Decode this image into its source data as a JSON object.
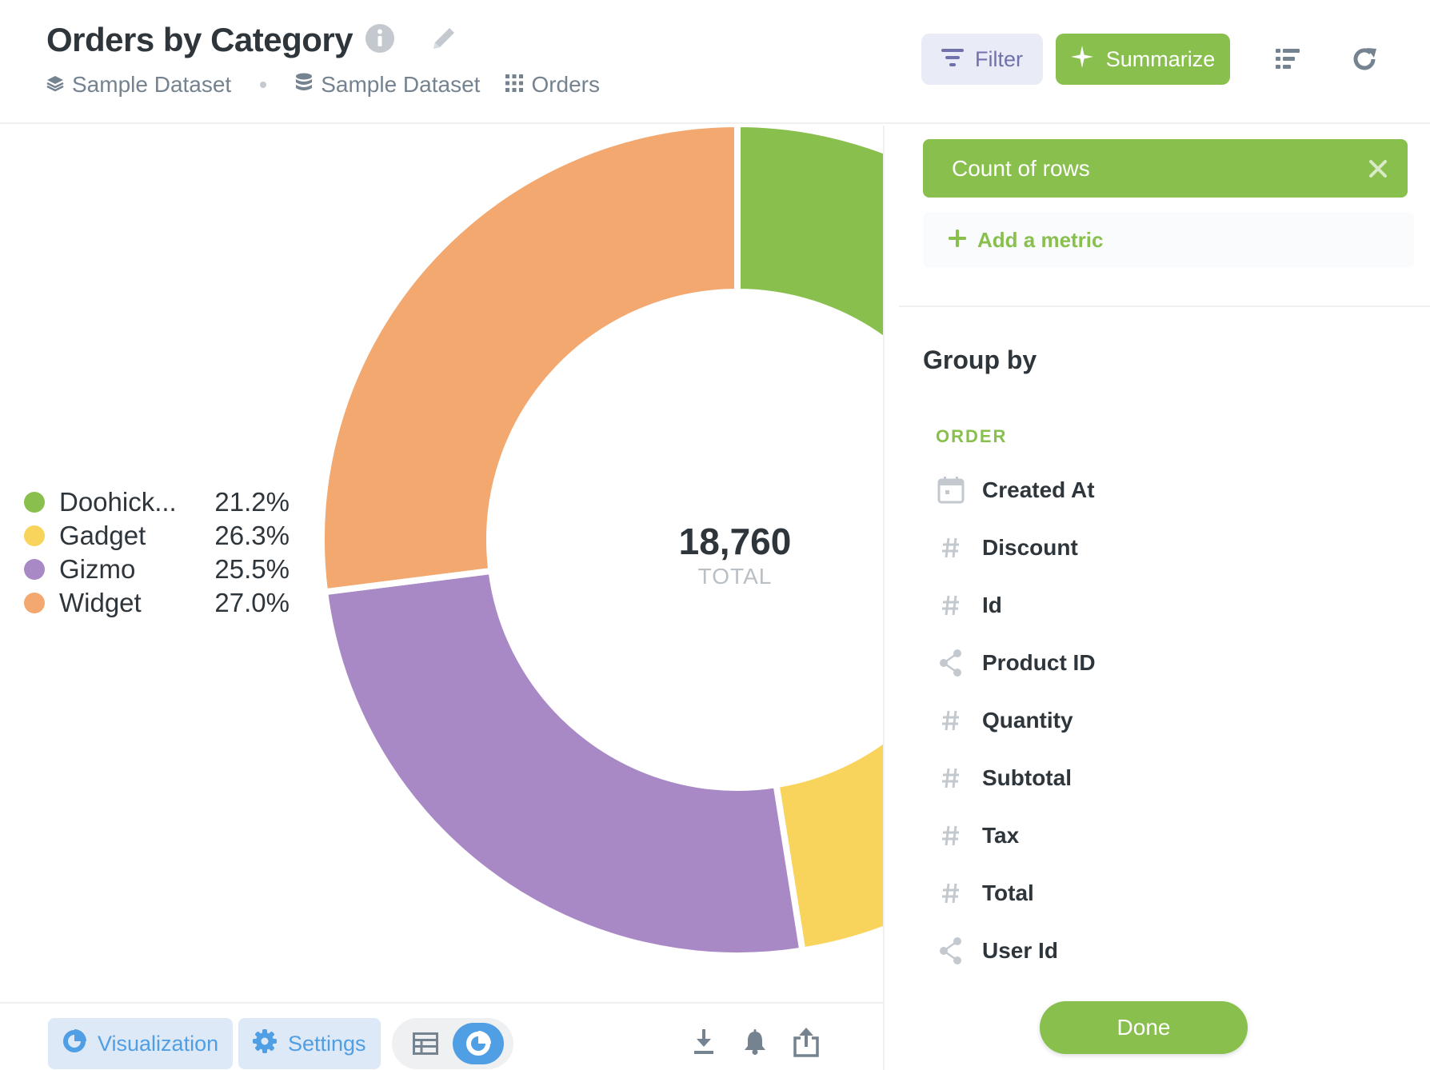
{
  "header": {
    "title": "Orders by Category",
    "breadcrumbs": [
      {
        "label": "Sample Dataset",
        "icon": "collection-icon"
      },
      {
        "label": "Sample Dataset",
        "icon": "database-icon"
      },
      {
        "label": "Orders",
        "icon": "table-grid-icon"
      }
    ],
    "filter_label": "Filter",
    "summarize_label": "Summarize"
  },
  "chart_data": {
    "type": "pie",
    "style": "donut",
    "categories": [
      "Doohickey",
      "Gadget",
      "Gizmo",
      "Widget"
    ],
    "legend_labels": [
      "Doohick...",
      "Gadget",
      "Gizmo",
      "Widget"
    ],
    "values": [
      21.2,
      26.3,
      25.5,
      27.0
    ],
    "percent_labels": [
      "21.2%",
      "26.3%",
      "25.5%",
      "27.0%"
    ],
    "colors": [
      "#88bf4d",
      "#f9d45c",
      "#a989c5",
      "#f2a86f"
    ],
    "total": "18,760",
    "total_label": "TOTAL",
    "legend_position": "left"
  },
  "sidebar": {
    "metric_label": "Count of rows",
    "add_metric_label": "Add a metric",
    "group_by_title": "Group by",
    "section_label": "ORDER",
    "fields": [
      {
        "label": "Created At",
        "icon": "calendar-icon"
      },
      {
        "label": "Discount",
        "icon": "number-icon"
      },
      {
        "label": "Id",
        "icon": "number-icon"
      },
      {
        "label": "Product ID",
        "icon": "connections-icon"
      },
      {
        "label": "Quantity",
        "icon": "number-icon"
      },
      {
        "label": "Subtotal",
        "icon": "number-icon"
      },
      {
        "label": "Tax",
        "icon": "number-icon"
      },
      {
        "label": "Total",
        "icon": "number-icon"
      },
      {
        "label": "User Id",
        "icon": "connections-icon"
      }
    ],
    "done_label": "Done"
  },
  "footer": {
    "visualization_label": "Visualization",
    "settings_label": "Settings"
  },
  "colors": {
    "brand_green": "#88bf4d",
    "brand_blue": "#509ee3",
    "filter_purple": "#7172ad",
    "text_dark": "#2e353b",
    "text_muted": "#74838f"
  }
}
